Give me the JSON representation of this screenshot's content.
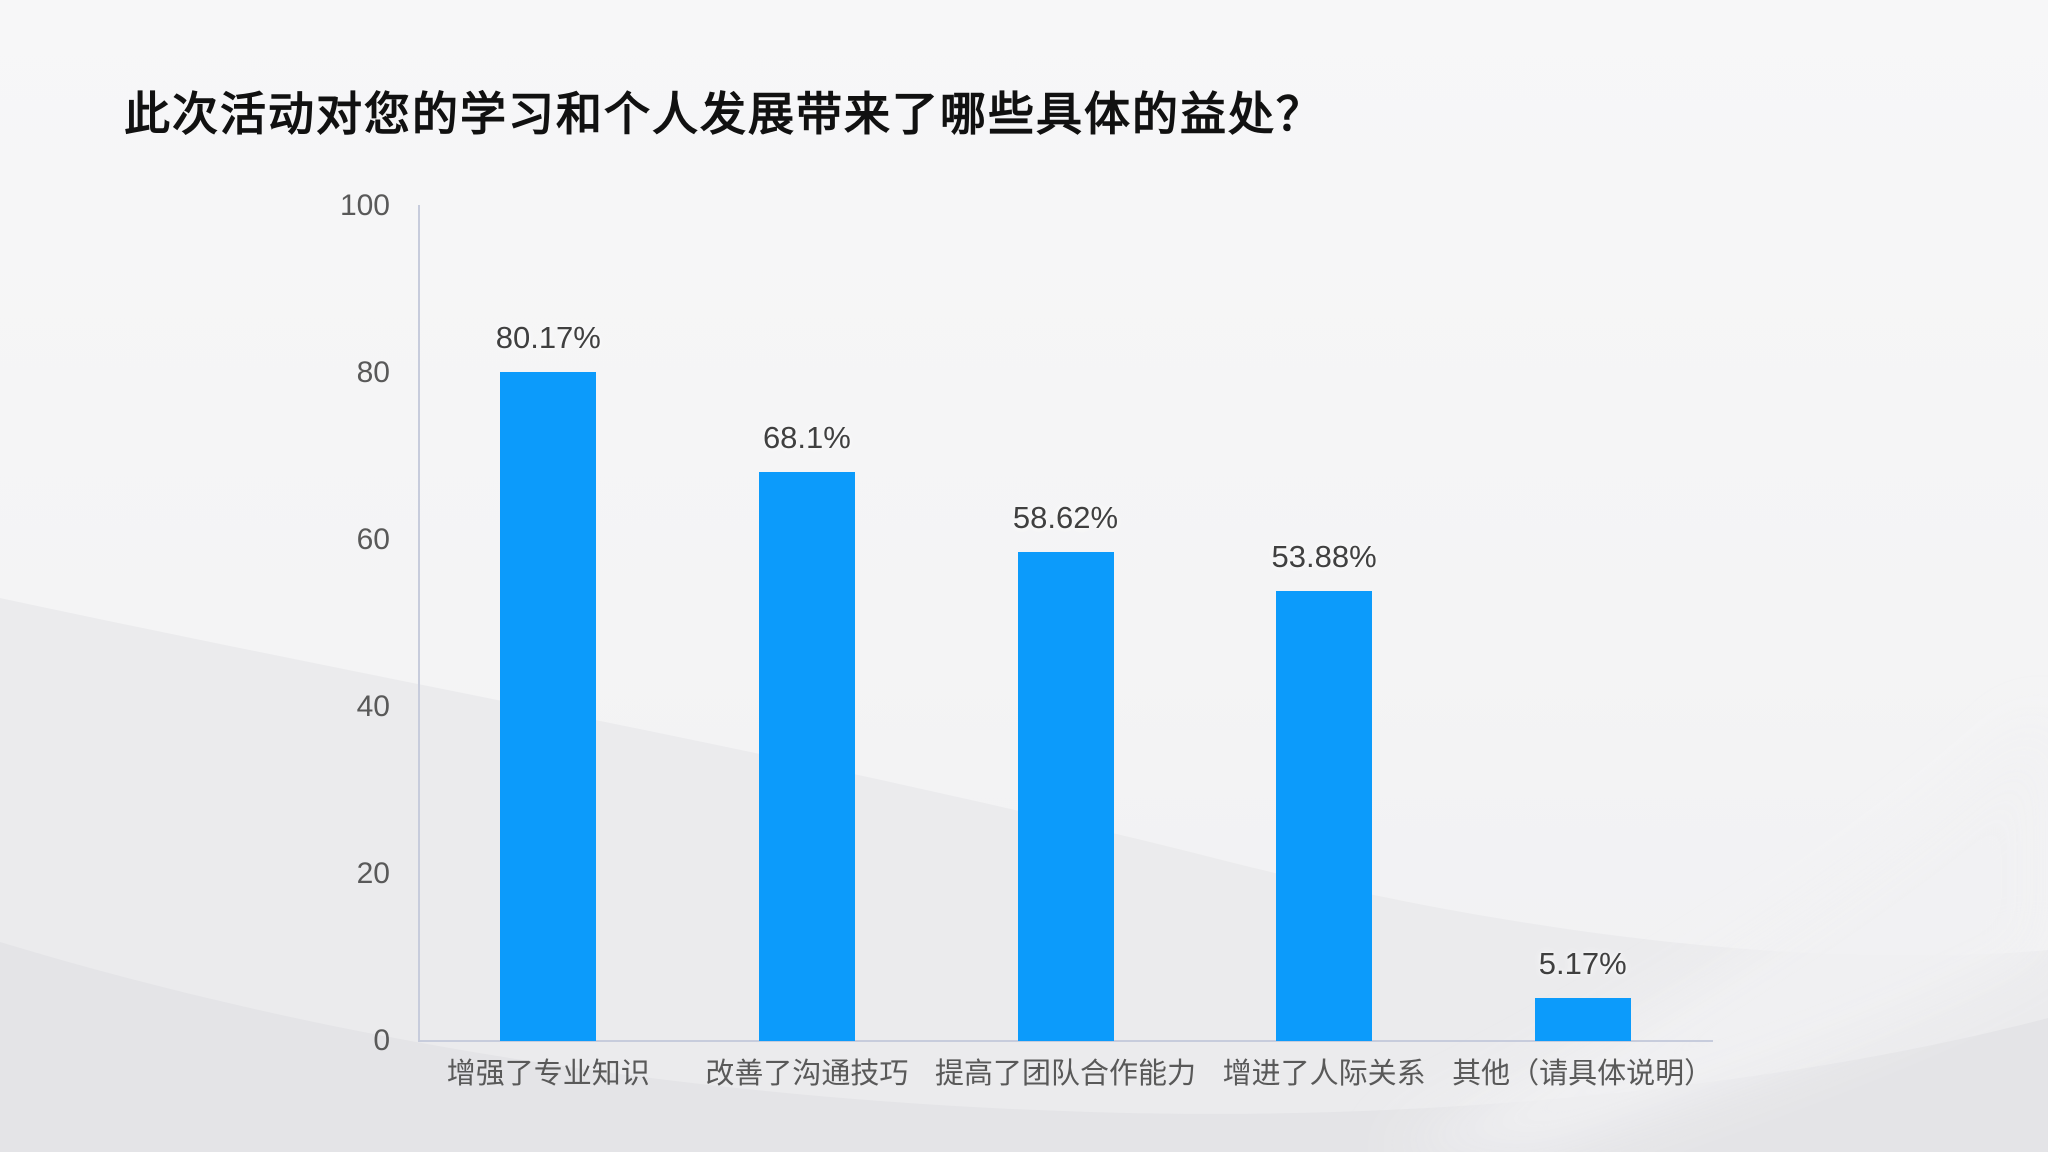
{
  "title": "此次活动对您的学习和个人发展带来了哪些具体的益处？",
  "colors": {
    "bar": "#0c9bfb",
    "axis": "#c7ccdc",
    "title_text": "#111111",
    "tick_text": "#595959",
    "value_text": "#404040",
    "category_text": "#595959",
    "bg_top": "#f7f7f8",
    "bg_bottom": "#f0f0f2",
    "wave_mid": "#ebebed",
    "wave_dark": "#e4e4e7",
    "wave_light": "#f1f1f3"
  },
  "chart_data": {
    "type": "bar",
    "title": "此次活动对您的学习和个人发展带来了哪些具体的益处？",
    "categories": [
      "增强了专业知识",
      "改善了沟通技巧",
      "提高了团队合作能力",
      "增进了人际关系",
      "其他（请具体说明）"
    ],
    "values": [
      80.17,
      68.1,
      58.62,
      53.88,
      5.17
    ],
    "value_labels": [
      "80.17%",
      "68.1%",
      "58.62%",
      "53.88%",
      "5.17%"
    ],
    "xlabel": "",
    "ylabel": "",
    "ylim": [
      0,
      100
    ],
    "yticks": [
      0,
      20,
      40,
      60,
      80,
      100
    ],
    "grid": false,
    "legend": "none",
    "bar_color": "#0c9bfb"
  }
}
